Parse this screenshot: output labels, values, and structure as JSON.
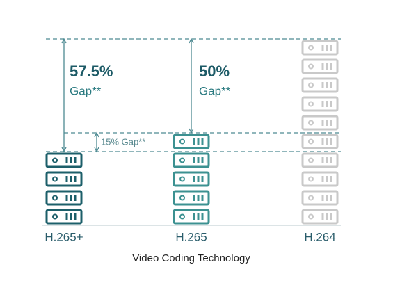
{
  "chart_data": {
    "type": "pictograph",
    "categories": [
      "H.265+",
      "H.265",
      "H.264"
    ],
    "values": [
      4,
      5,
      10
    ],
    "colors": [
      "#1c5f6a",
      "#3c9191",
      "#c9c9c9"
    ],
    "x_label": "Video Coding Technology",
    "annotations": [
      "57.5%",
      "Gap**",
      "50%",
      "Gap**",
      "15% Gap**"
    ]
  }
}
